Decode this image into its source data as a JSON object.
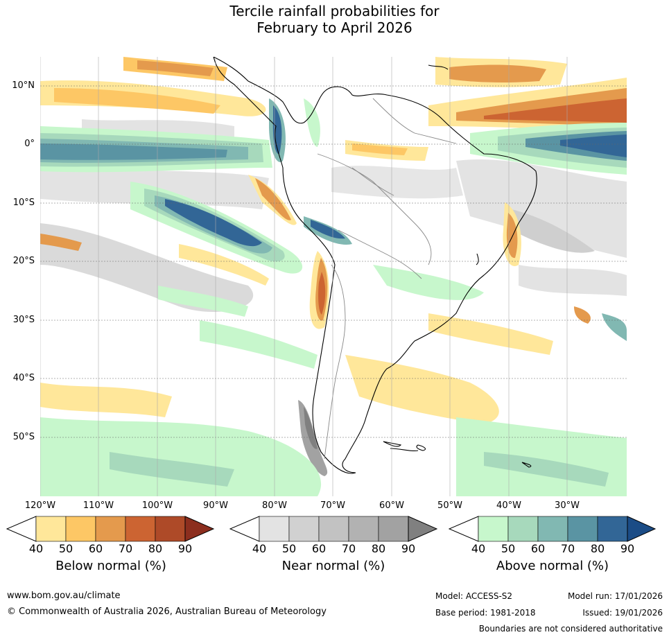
{
  "title": {
    "line1": "Tercile rainfall probabilities for",
    "line2": "February to April 2026"
  },
  "map": {
    "lat_labels": [
      "10°N",
      "0°",
      "10°S",
      "20°S",
      "30°S",
      "40°S",
      "50°S"
    ],
    "lon_labels": [
      "120°W",
      "110°W",
      "100°W",
      "90°W",
      "80°W",
      "70°W",
      "60°W",
      "50°W",
      "40°W",
      "30°W"
    ]
  },
  "colorbars": [
    {
      "name": "below",
      "title": "Below normal (%)",
      "ticks": [
        "40",
        "50",
        "60",
        "70",
        "80",
        "90"
      ],
      "colors": [
        "#ffe79a",
        "#fdc765",
        "#e49a4d",
        "#cc6432",
        "#ae4a28",
        "#8c2e1e"
      ]
    },
    {
      "name": "near",
      "title": "Near normal (%)",
      "ticks": [
        "40",
        "50",
        "60",
        "70",
        "80",
        "90"
      ],
      "colors": [
        "#e3e3e3",
        "#d1d1d1",
        "#c2c2c2",
        "#b2b2b2",
        "#a2a2a2",
        "#808080"
      ]
    },
    {
      "name": "above",
      "title": "Above normal (%)",
      "ticks": [
        "40",
        "50",
        "60",
        "70",
        "80",
        "90"
      ],
      "colors": [
        "#c7f7cc",
        "#a7d9bc",
        "#81b8b2",
        "#5a94a3",
        "#326696",
        "#1b4c86"
      ]
    }
  ],
  "footer": {
    "url": "www.bom.gov.au/climate",
    "copyright": "© Commonwealth of Australia 2026, Australian Bureau of Meteorology",
    "model": "Model: ACCESS-S2",
    "model_run": "Model run: 17/01/2026",
    "base_period": "Base period: 1981-2018",
    "issued": "Issued: 19/01/2026",
    "disclaimer": "Boundaries are not considered authoritative"
  }
}
